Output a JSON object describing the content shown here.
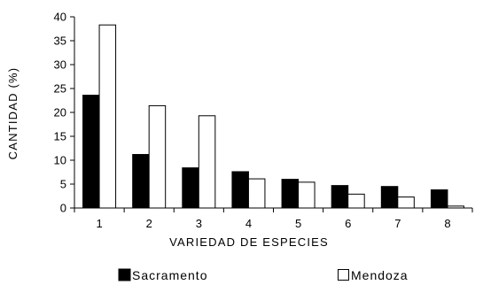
{
  "chart_data": {
    "type": "bar",
    "title": "",
    "xlabel": "VARIEDAD DE ESPECIES",
    "ylabel": "CANTIDAD (%)",
    "categories": [
      "1",
      "2",
      "3",
      "4",
      "5",
      "6",
      "7",
      "8"
    ],
    "ylim": [
      0,
      40
    ],
    "yticks": [
      "0",
      "5",
      "10",
      "15",
      "20",
      "25",
      "30",
      "35",
      "40"
    ],
    "grid": false,
    "legend_position": "bottom",
    "series": [
      {
        "name": "Sacramento",
        "color": "#000000",
        "values": [
          23.6,
          11.2,
          8.4,
          7.6,
          6.0,
          4.7,
          4.5,
          3.8
        ]
      },
      {
        "name": "Mendoza",
        "color": "#ffffff",
        "values": [
          38.3,
          21.4,
          19.3,
          6.1,
          5.4,
          2.9,
          2.3,
          0.4
        ]
      }
    ]
  }
}
